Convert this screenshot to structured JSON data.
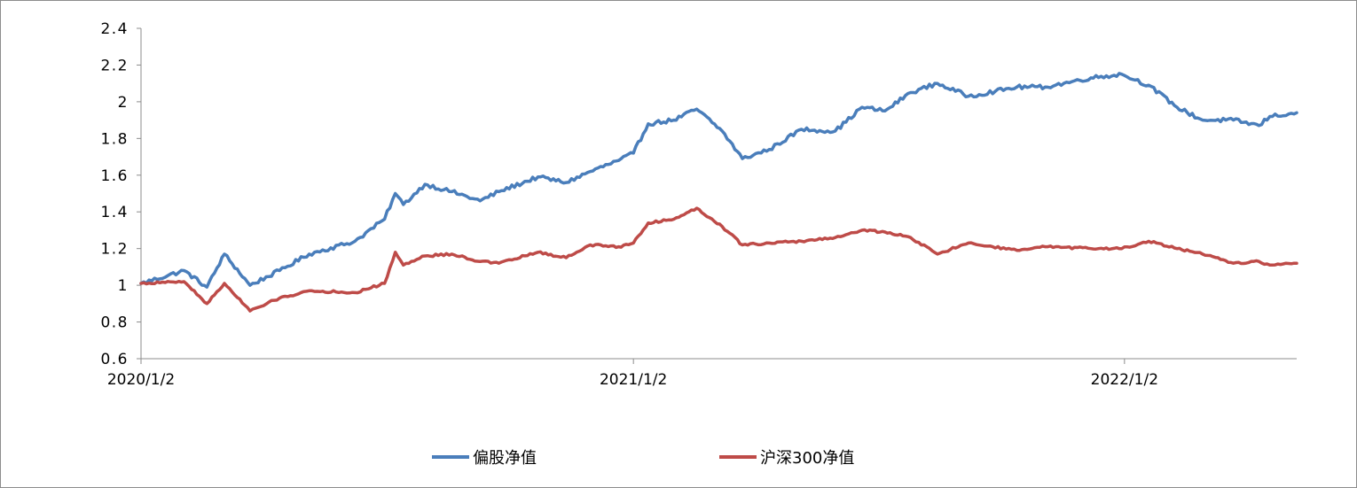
{
  "chart_data": {
    "type": "line",
    "title": "",
    "xlabel": "",
    "ylabel": "",
    "x_tick_labels": [
      "2020/1/2",
      "2021/1/2",
      "2022/1/2"
    ],
    "y_tick_labels": [
      "0.6",
      "0.8",
      "1",
      "1.2",
      "1.4",
      "1.6",
      "1.8",
      "2",
      "2.2",
      "2.4"
    ],
    "y_ticks": [
      0.6,
      0.8,
      1.0,
      1.2,
      1.4,
      1.6,
      1.8,
      2.0,
      2.2,
      2.4
    ],
    "ylim": [
      0.6,
      2.4
    ],
    "xlim": [
      "2020-01-02",
      "2022-05-10"
    ],
    "grid": false,
    "legend_position": "bottom",
    "x": [
      "2020-01-02",
      "2020-02-03",
      "2020-02-20",
      "2020-03-04",
      "2020-03-23",
      "2020-04-14",
      "2020-05-06",
      "2020-06-09",
      "2020-07-01",
      "2020-07-09",
      "2020-07-15",
      "2020-07-31",
      "2020-08-20",
      "2020-09-10",
      "2020-09-24",
      "2020-10-23",
      "2020-11-13",
      "2020-12-01",
      "2020-12-22",
      "2021-01-02",
      "2021-01-13",
      "2021-02-01",
      "2021-02-18",
      "2021-03-09",
      "2021-03-24",
      "2021-04-13",
      "2021-05-07",
      "2021-06-01",
      "2021-06-21",
      "2021-07-08",
      "2021-07-27",
      "2021-08-16",
      "2021-09-08",
      "2021-10-14",
      "2021-11-04",
      "2021-12-08",
      "2021-12-31",
      "2022-01-20",
      "2022-02-10",
      "2022-03-01",
      "2022-03-24",
      "2022-04-12",
      "2022-04-20",
      "2022-05-10"
    ],
    "series": [
      {
        "name": "偏股净值",
        "color": "#4a7ebb",
        "values": [
          1.01,
          1.08,
          0.99,
          1.17,
          1.0,
          1.08,
          1.17,
          1.24,
          1.36,
          1.5,
          1.44,
          1.55,
          1.51,
          1.46,
          1.51,
          1.59,
          1.56,
          1.62,
          1.68,
          1.72,
          1.88,
          1.9,
          1.96,
          1.84,
          1.69,
          1.74,
          1.85,
          1.84,
          1.97,
          1.95,
          2.05,
          2.1,
          2.03,
          2.08,
          2.08,
          2.13,
          2.15,
          2.09,
          1.97,
          1.9,
          1.9,
          1.87,
          1.92,
          1.94
        ]
      },
      {
        "name": "沪深300净值",
        "color": "#be4b48",
        "values": [
          1.01,
          1.02,
          0.9,
          1.01,
          0.86,
          0.93,
          0.97,
          0.96,
          1.01,
          1.18,
          1.11,
          1.16,
          1.17,
          1.13,
          1.12,
          1.18,
          1.15,
          1.22,
          1.21,
          1.23,
          1.34,
          1.36,
          1.42,
          1.32,
          1.22,
          1.23,
          1.24,
          1.26,
          1.3,
          1.29,
          1.26,
          1.17,
          1.23,
          1.19,
          1.21,
          1.2,
          1.2,
          1.24,
          1.2,
          1.17,
          1.12,
          1.13,
          1.11,
          1.12
        ]
      }
    ]
  },
  "legend": {
    "items": [
      {
        "label": "偏股净值",
        "color": "#4a7ebb"
      },
      {
        "label": "沪深300净值",
        "color": "#be4b48"
      }
    ]
  }
}
